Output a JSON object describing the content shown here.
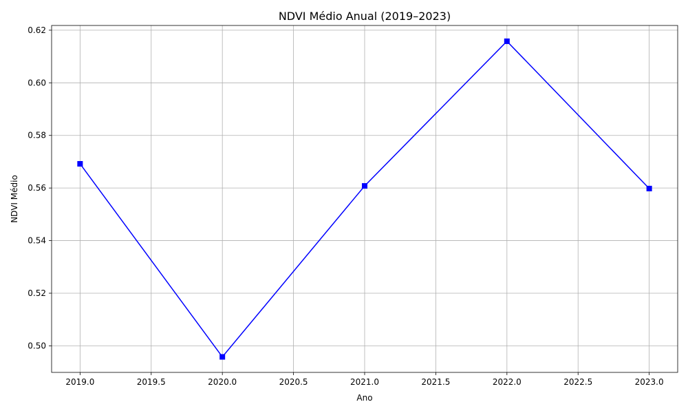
{
  "chart_data": {
    "type": "line",
    "title": "NDVI Médio Anual (2019–2023)",
    "xlabel": "Ano",
    "ylabel": "NDVI Médio",
    "xlim": [
      2018.8,
      2023.2
    ],
    "ylim": [
      0.4899,
      0.6218
    ],
    "x_ticks": [
      2019.0,
      2019.5,
      2020.0,
      2020.5,
      2021.0,
      2021.5,
      2022.0,
      2022.5,
      2023.0
    ],
    "x_tick_labels": [
      "2019.0",
      "2019.5",
      "2020.0",
      "2020.5",
      "2021.0",
      "2021.5",
      "2022.0",
      "2022.5",
      "2023.0"
    ],
    "y_ticks": [
      0.5,
      0.52,
      0.54,
      0.56,
      0.58,
      0.6,
      0.62
    ],
    "y_tick_labels": [
      "0.50",
      "0.52",
      "0.54",
      "0.56",
      "0.58",
      "0.60",
      "0.62"
    ],
    "grid": true,
    "series": [
      {
        "color": "#0000ff",
        "marker": "square",
        "x": [
          2019,
          2020,
          2021,
          2022,
          2023
        ],
        "y": [
          0.5692,
          0.4958,
          0.5608,
          0.6158,
          0.5598
        ]
      }
    ]
  }
}
